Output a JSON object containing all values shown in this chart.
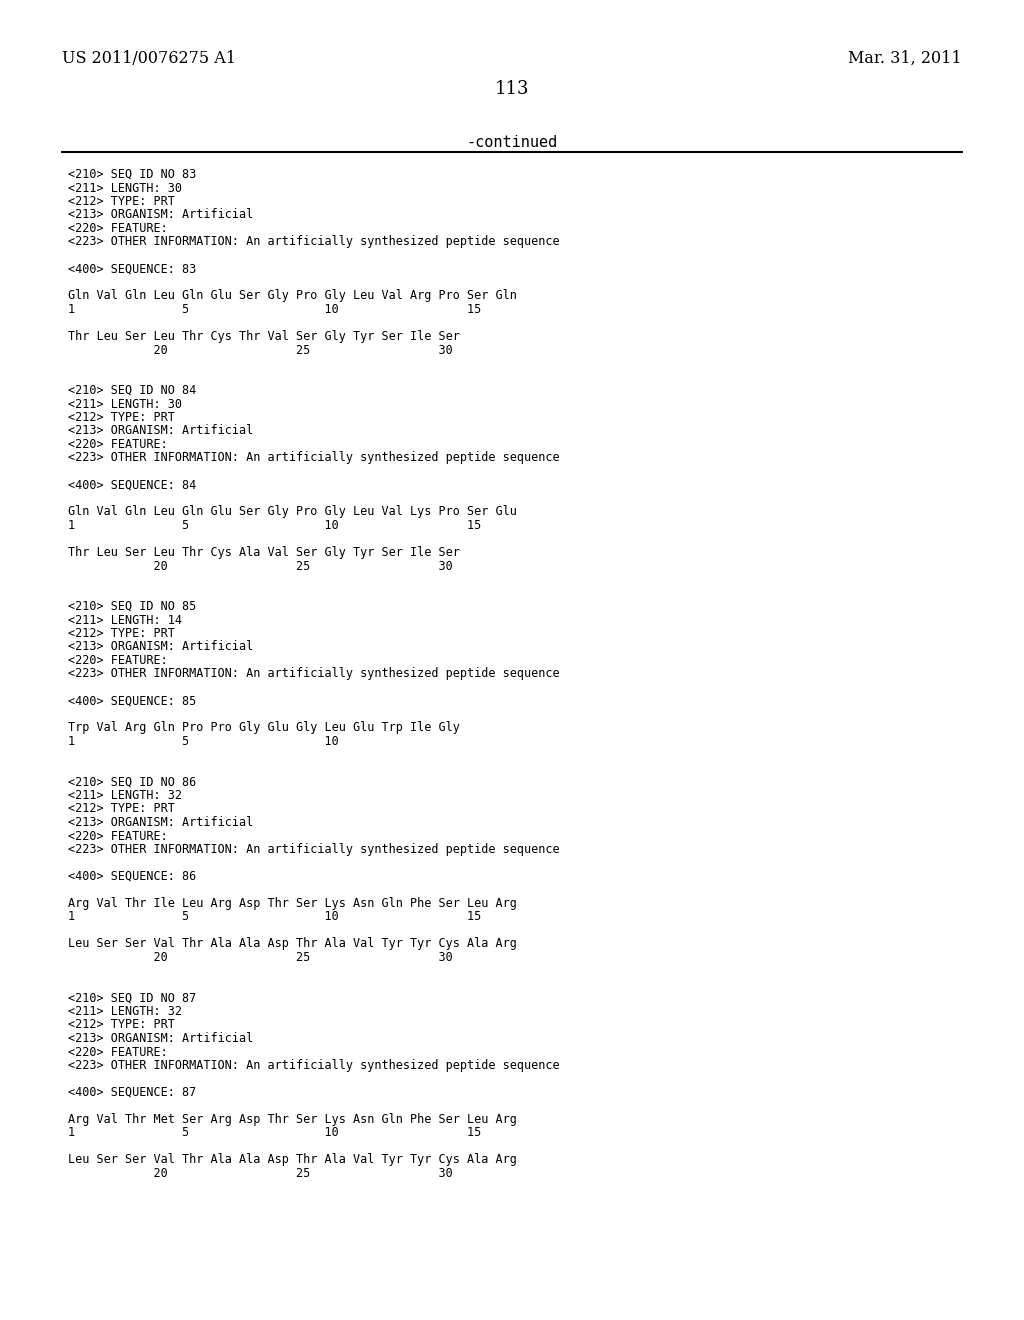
{
  "header_left": "US 2011/0076275 A1",
  "header_right": "Mar. 31, 2011",
  "page_number": "113",
  "continued_label": "-continued",
  "background_color": "#ffffff",
  "text_color": "#000000",
  "lines": [
    "<210> SEQ ID NO 83",
    "<211> LENGTH: 30",
    "<212> TYPE: PRT",
    "<213> ORGANISM: Artificial",
    "<220> FEATURE:",
    "<223> OTHER INFORMATION: An artificially synthesized peptide sequence",
    "",
    "<400> SEQUENCE: 83",
    "",
    "Gln Val Gln Leu Gln Glu Ser Gly Pro Gly Leu Val Arg Pro Ser Gln",
    "1               5                   10                  15",
    "",
    "Thr Leu Ser Leu Thr Cys Thr Val Ser Gly Tyr Ser Ile Ser",
    "            20                  25                  30",
    "",
    "",
    "<210> SEQ ID NO 84",
    "<211> LENGTH: 30",
    "<212> TYPE: PRT",
    "<213> ORGANISM: Artificial",
    "<220> FEATURE:",
    "<223> OTHER INFORMATION: An artificially synthesized peptide sequence",
    "",
    "<400> SEQUENCE: 84",
    "",
    "Gln Val Gln Leu Gln Glu Ser Gly Pro Gly Leu Val Lys Pro Ser Glu",
    "1               5                   10                  15",
    "",
    "Thr Leu Ser Leu Thr Cys Ala Val Ser Gly Tyr Ser Ile Ser",
    "            20                  25                  30",
    "",
    "",
    "<210> SEQ ID NO 85",
    "<211> LENGTH: 14",
    "<212> TYPE: PRT",
    "<213> ORGANISM: Artificial",
    "<220> FEATURE:",
    "<223> OTHER INFORMATION: An artificially synthesized peptide sequence",
    "",
    "<400> SEQUENCE: 85",
    "",
    "Trp Val Arg Gln Pro Pro Gly Glu Gly Leu Glu Trp Ile Gly",
    "1               5                   10",
    "",
    "",
    "<210> SEQ ID NO 86",
    "<211> LENGTH: 32",
    "<212> TYPE: PRT",
    "<213> ORGANISM: Artificial",
    "<220> FEATURE:",
    "<223> OTHER INFORMATION: An artificially synthesized peptide sequence",
    "",
    "<400> SEQUENCE: 86",
    "",
    "Arg Val Thr Ile Leu Arg Asp Thr Ser Lys Asn Gln Phe Ser Leu Arg",
    "1               5                   10                  15",
    "",
    "Leu Ser Ser Val Thr Ala Ala Asp Thr Ala Val Tyr Tyr Cys Ala Arg",
    "            20                  25                  30",
    "",
    "",
    "<210> SEQ ID NO 87",
    "<211> LENGTH: 32",
    "<212> TYPE: PRT",
    "<213> ORGANISM: Artificial",
    "<220> FEATURE:",
    "<223> OTHER INFORMATION: An artificially synthesized peptide sequence",
    "",
    "<400> SEQUENCE: 87",
    "",
    "Arg Val Thr Met Ser Arg Asp Thr Ser Lys Asn Gln Phe Ser Leu Arg",
    "1               5                   10                  15",
    "",
    "Leu Ser Ser Val Thr Ala Ala Asp Thr Ala Val Tyr Tyr Cys Ala Arg",
    "            20                  25                  30"
  ]
}
